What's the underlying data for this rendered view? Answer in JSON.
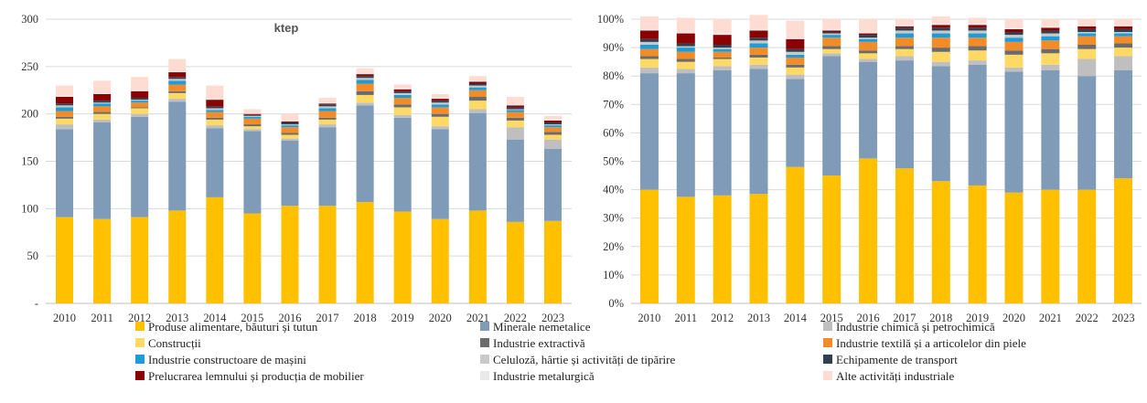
{
  "colors": {
    "produse": "#FFC000",
    "minerale": "#7F9BB8",
    "chimica": "#BFBFBF",
    "constructii": "#FFD966",
    "extractiva": "#6B6B6B",
    "textila": "#F28C28",
    "masini": "#1F9BD8",
    "celuloza": "#C9C9C9",
    "transport": "#2F4050",
    "lemn": "#8B0000",
    "metalurgica": "#EAEAEA",
    "alte": "#FFDCD2",
    "grid": "#D9D9D9",
    "axis": "#BFBFBF"
  },
  "legend": [
    {
      "key": "produse",
      "label": "Produse alimentare, băuturi și tutun"
    },
    {
      "key": "minerale",
      "label": "Minerale nemetalice"
    },
    {
      "key": "chimica",
      "label": "Industrie chimică și petrochimică"
    },
    {
      "key": "constructii",
      "label": "Construcții"
    },
    {
      "key": "extractiva",
      "label": "Industrie extractivă"
    },
    {
      "key": "textila",
      "label": "Industrie textilă și a articolelor din piele"
    },
    {
      "key": "masini",
      "label": "Industrie constructoare de mașini"
    },
    {
      "key": "celuloza",
      "label": "Celuloză, hârtie și activități de tipărire"
    },
    {
      "key": "transport",
      "label": "Echipamente de transport"
    },
    {
      "key": "lemn",
      "label": "Prelucrarea lemnului și producția de mobilier"
    },
    {
      "key": "metalurgica",
      "label": "Industrie metalurgică"
    },
    {
      "key": "alte",
      "label": "Alte activități industriale"
    }
  ],
  "chart_data": [
    {
      "type": "bar",
      "stacked": true,
      "unit_label": "ktep",
      "categories": [
        "2010",
        "2011",
        "2012",
        "2013",
        "2014",
        "2015",
        "2016",
        "2017",
        "2018",
        "2019",
        "2020",
        "2021",
        "2022",
        "2023"
      ],
      "ylim": [
        0,
        300
      ],
      "yticks": [
        0,
        50,
        100,
        150,
        200,
        250,
        300
      ],
      "ytick_labels": [
        "-",
        "50",
        "100",
        "150",
        "200",
        "250",
        "300"
      ],
      "grid": true,
      "series": [
        {
          "key": "produse",
          "values": [
            91,
            89,
            91,
            98,
            112,
            95,
            103,
            103,
            107,
            97,
            89,
            98,
            86,
            87
          ]
        },
        {
          "key": "minerale",
          "values": [
            93,
            102,
            106,
            115,
            73,
            87,
            69,
            83,
            102,
            99,
            95,
            103,
            87,
            76
          ]
        },
        {
          "key": "chimica",
          "values": [
            5,
            3,
            3,
            3,
            3,
            2,
            2,
            3,
            3,
            3,
            3,
            4,
            13,
            10
          ]
        },
        {
          "key": "constructii",
          "values": [
            6,
            6,
            6,
            6,
            6,
            3,
            4,
            5,
            8,
            8,
            10,
            9,
            7,
            5
          ]
        },
        {
          "key": "extractiva",
          "values": [
            2,
            2,
            1,
            2,
            2,
            2,
            2,
            2,
            4,
            3,
            3,
            4,
            3,
            3
          ]
        },
        {
          "key": "textila",
          "values": [
            6,
            6,
            5,
            7,
            6,
            6,
            6,
            7,
            8,
            7,
            7,
            7,
            6,
            5
          ]
        },
        {
          "key": "masini",
          "values": [
            4,
            3,
            2,
            4,
            2,
            2,
            2,
            3,
            4,
            3,
            3,
            3,
            2,
            2
          ]
        },
        {
          "key": "celuloza",
          "values": [
            2,
            1,
            1,
            2,
            2,
            1,
            1,
            2,
            2,
            2,
            2,
            2,
            1,
            1
          ]
        },
        {
          "key": "transport",
          "values": [
            2,
            2,
            2,
            2,
            2,
            1,
            2,
            2,
            2,
            2,
            2,
            2,
            2,
            2
          ]
        },
        {
          "key": "lemn",
          "values": [
            7,
            7,
            7,
            5,
            7,
            1,
            1,
            1,
            2,
            2,
            2,
            2,
            2,
            2
          ]
        },
        {
          "key": "metalurgica",
          "values": [
            1,
            1,
            1,
            1,
            1,
            1,
            1,
            1,
            1,
            1,
            1,
            1,
            1,
            1
          ]
        },
        {
          "key": "alte",
          "values": [
            11,
            13,
            14,
            13,
            14,
            4,
            7,
            5,
            5,
            4,
            4,
            5,
            8,
            4
          ]
        }
      ]
    },
    {
      "type": "bar",
      "stacked": true,
      "categories": [
        "2010",
        "2011",
        "2012",
        "2013",
        "2014",
        "2015",
        "2016",
        "2017",
        "2018",
        "2019",
        "2020",
        "2021",
        "2022",
        "2023"
      ],
      "ylim": [
        0,
        100
      ],
      "yticks": [
        0,
        10,
        20,
        30,
        40,
        50,
        60,
        70,
        80,
        90,
        100
      ],
      "ytick_labels": [
        "0%",
        "10%",
        "20%",
        "30%",
        "40%",
        "50%",
        "60%",
        "70%",
        "80%",
        "90%",
        "100%"
      ],
      "grid": true,
      "series": [
        {
          "key": "produse",
          "values": [
            40,
            37.5,
            38,
            38.5,
            48,
            45,
            51,
            47.5,
            43,
            41.5,
            39,
            40,
            40,
            44
          ]
        },
        {
          "key": "minerale",
          "values": [
            41,
            43.5,
            44,
            44,
            31,
            42,
            34,
            38,
            40.5,
            42.5,
            42.5,
            42,
            40,
            38
          ]
        },
        {
          "key": "chimica",
          "values": [
            2,
            1.5,
            1.5,
            1.5,
            1.5,
            1,
            1,
            1.5,
            1.5,
            1.5,
            1.5,
            2,
            6,
            5
          ]
        },
        {
          "key": "constructii",
          "values": [
            3,
            2.5,
            2.5,
            2.5,
            2.5,
            1.5,
            2,
            2.5,
            3.5,
            3.5,
            4.5,
            4,
            3.5,
            3
          ]
        },
        {
          "key": "extractiva",
          "values": [
            1,
            1,
            0.5,
            1,
            1,
            1,
            1,
            1,
            1.5,
            1.5,
            1.5,
            1.5,
            1.5,
            1.5
          ]
        },
        {
          "key": "textila",
          "values": [
            2.5,
            2.5,
            2,
            2.5,
            2.5,
            3,
            3,
            3,
            3.5,
            3,
            3,
            3,
            3,
            2.5
          ]
        },
        {
          "key": "masini",
          "values": [
            1.5,
            1.5,
            1,
            1.5,
            1,
            1,
            1,
            1.5,
            1.5,
            1.5,
            1.5,
            1.5,
            1,
            1
          ]
        },
        {
          "key": "celuloza",
          "values": [
            1,
            0.5,
            0.5,
            1,
            1,
            0.5,
            0.5,
            1,
            1,
            1,
            1,
            1,
            0.5,
            0.5
          ]
        },
        {
          "key": "transport",
          "values": [
            1,
            1,
            1,
            1,
            1,
            0.5,
            1,
            1,
            1,
            1,
            1,
            1,
            1,
            1
          ]
        },
        {
          "key": "lemn",
          "values": [
            3,
            3.5,
            3.5,
            2.5,
            3.5,
            0.5,
            0.5,
            0.5,
            1,
            1,
            1,
            1,
            1,
            1
          ]
        },
        {
          "key": "metalurgica",
          "values": [
            0.5,
            0.5,
            0.5,
            0.5,
            0.5,
            0.5,
            0.5,
            0.5,
            0.5,
            0.5,
            0.5,
            0.5,
            0.5,
            0.5
          ]
        },
        {
          "key": "alte",
          "values": [
            4.5,
            5,
            5,
            5,
            6,
            3.5,
            4.5,
            2,
            2.5,
            2,
            3,
            2.5,
            2,
            2
          ]
        }
      ]
    }
  ]
}
